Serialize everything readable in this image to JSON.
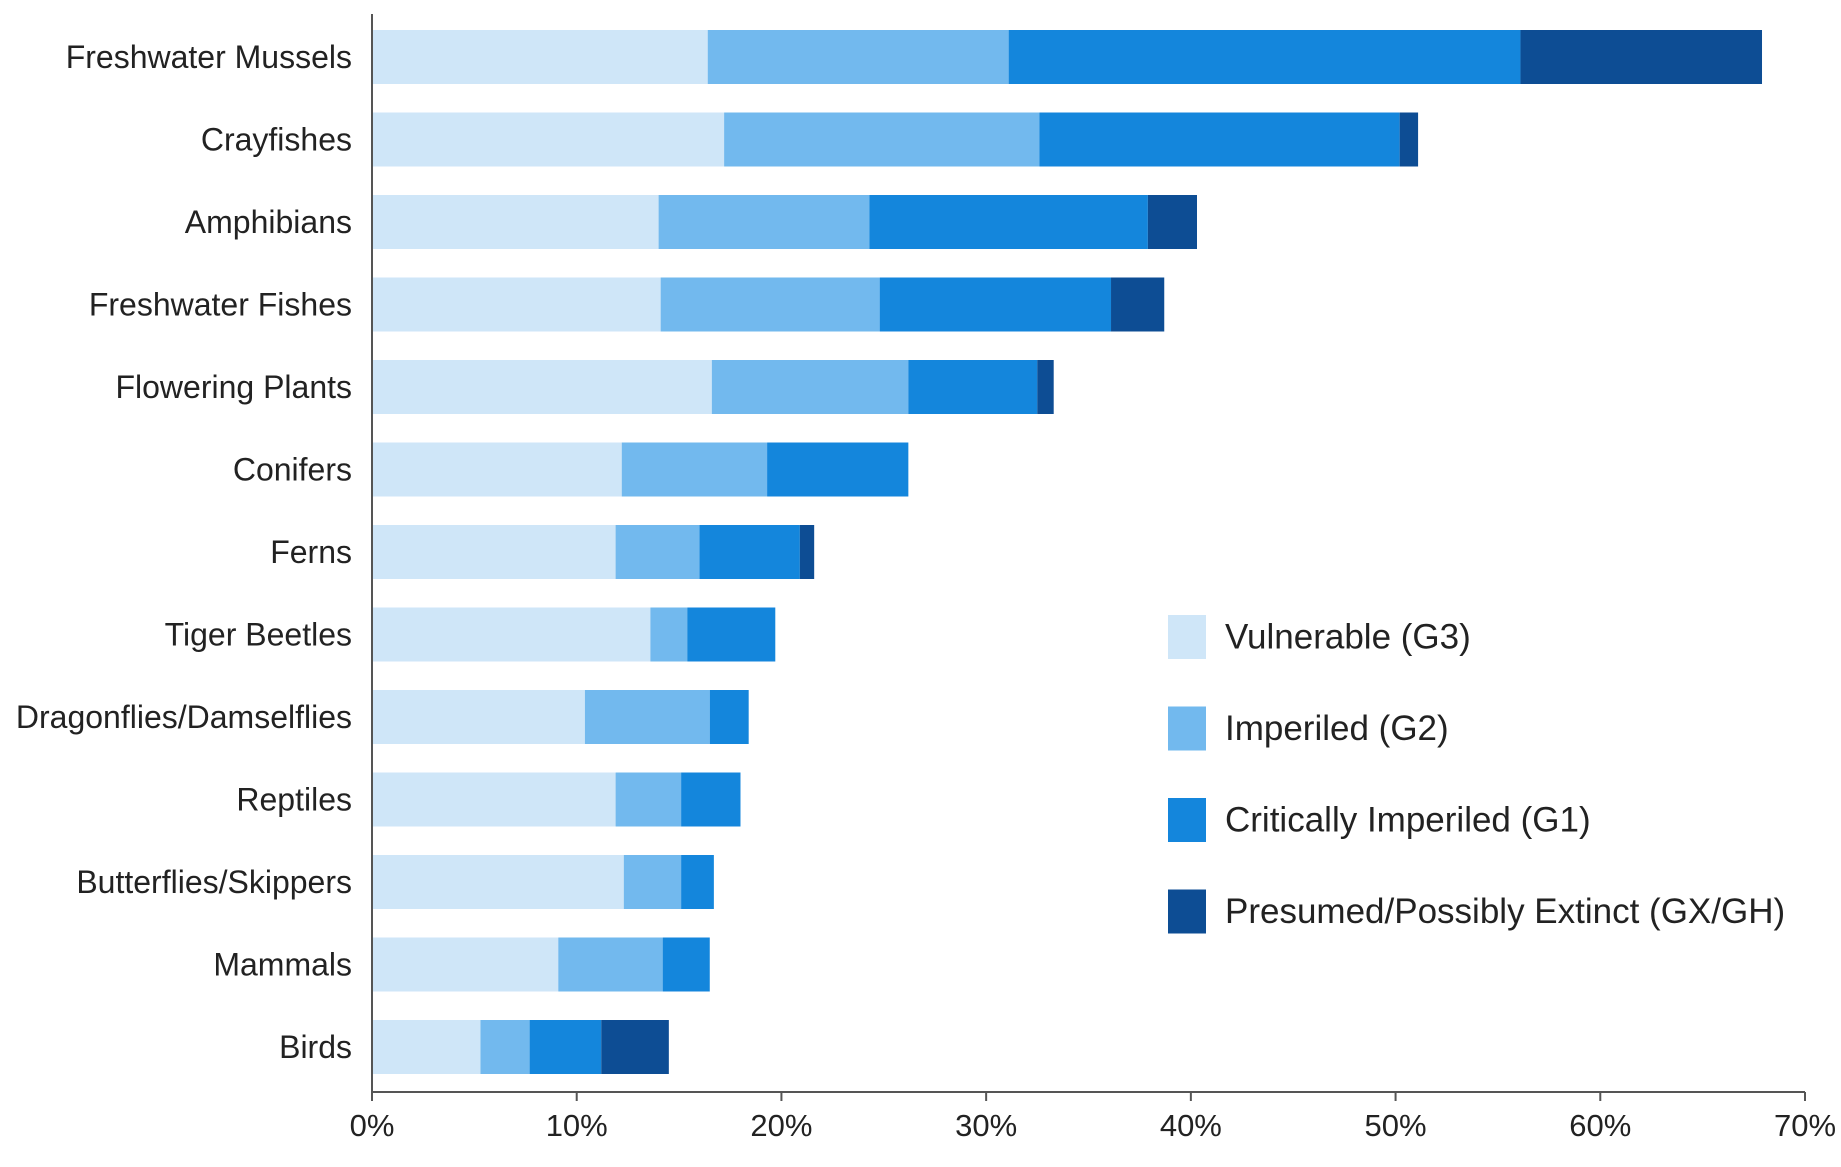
{
  "chart_data": {
    "type": "bar",
    "orientation": "horizontal",
    "stacked": true,
    "categories": [
      "Freshwater Mussels",
      "Crayfishes",
      "Amphibians",
      "Freshwater Fishes",
      "Flowering Plants",
      "Conifers",
      "Ferns",
      "Tiger Beetles",
      "Dragonflies/Damselflies",
      "Reptiles",
      "Butterflies/Skippers",
      "Mammals",
      "Birds"
    ],
    "series": [
      {
        "name": "Vulnerable (G3)",
        "color": "#cfe6f8",
        "values": [
          16.4,
          17.2,
          14.0,
          14.1,
          16.6,
          12.2,
          11.9,
          13.6,
          10.4,
          11.9,
          12.3,
          9.1,
          5.3
        ]
      },
      {
        "name": "Imperiled (G2)",
        "color": "#72b9ee",
        "values": [
          14.7,
          15.4,
          10.3,
          10.7,
          9.6,
          7.1,
          4.1,
          1.8,
          6.1,
          3.2,
          2.8,
          5.1,
          2.4
        ]
      },
      {
        "name": "Critically Imperiled (G1)",
        "color": "#1486dc",
        "values": [
          25.0,
          17.6,
          13.6,
          11.3,
          6.3,
          6.9,
          4.9,
          4.3,
          1.9,
          2.9,
          1.6,
          2.3,
          3.5
        ]
      },
      {
        "name": "Presumed/Possibly Extinct (GX/GH)",
        "color": "#0d4d94",
        "values": [
          11.8,
          0.9,
          2.4,
          2.6,
          0.8,
          0.0,
          0.7,
          0.0,
          0.0,
          0.0,
          0.0,
          0.0,
          3.3
        ]
      }
    ],
    "xlim": [
      0,
      70
    ],
    "xticks": [
      "0%",
      "10%",
      "20%",
      "30%",
      "40%",
      "50%",
      "60%",
      "70%"
    ],
    "xlabel": "",
    "ylabel": "",
    "grid": false,
    "legend_position": "right"
  }
}
